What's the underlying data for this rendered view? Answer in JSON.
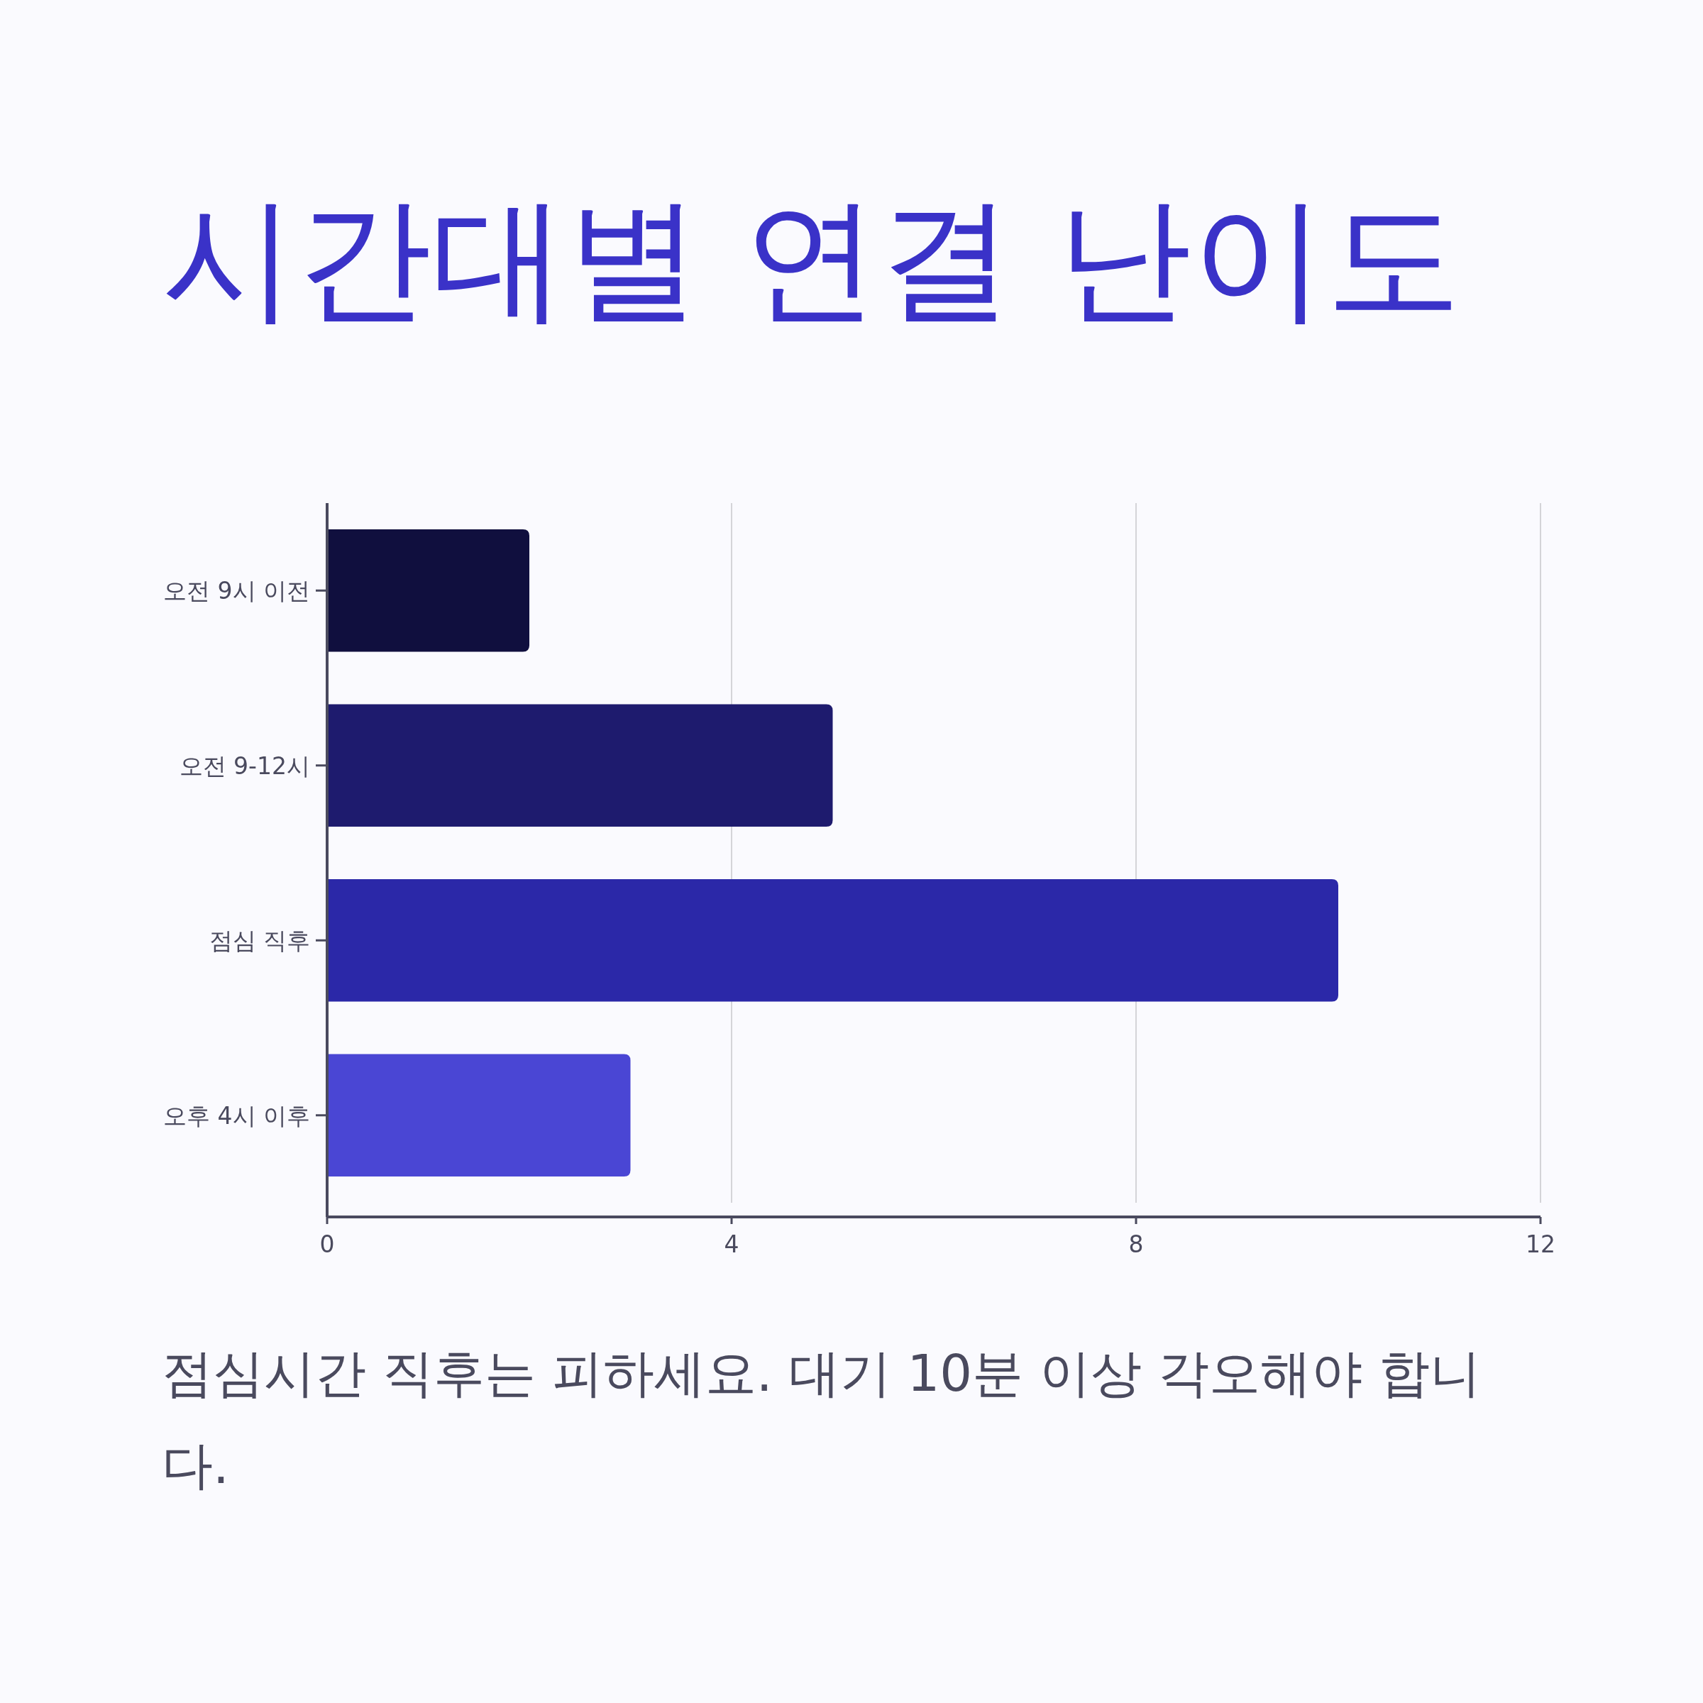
{
  "chart_data": {
    "type": "bar",
    "orientation": "horizontal",
    "title": "시간대별 연결 난이도",
    "categories": [
      "오전 9시 이전",
      "오전 9-12시",
      "점심 직후",
      "오후 4시 이후"
    ],
    "values": [
      2,
      5,
      10,
      3
    ],
    "colors": [
      "#100f3e",
      "#1e1b6e",
      "#2b28a8",
      "#4a46d4"
    ],
    "xlim": [
      0,
      12
    ],
    "xticks": [
      0,
      4,
      8,
      12
    ],
    "grid": "x",
    "annotations": [
      "점심시간 직후는 피하세요. 대기 10분 이상 각오해야 합니다."
    ]
  }
}
